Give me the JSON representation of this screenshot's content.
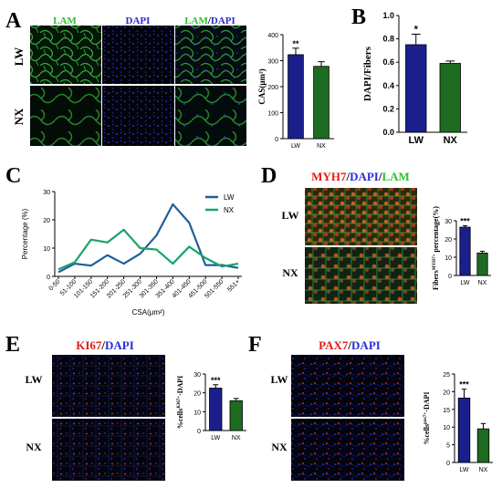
{
  "colors": {
    "lw": "#1a1f8c",
    "nx": "#1e6b22",
    "lw_line": "#1d5f9a",
    "nx_line": "#1aa36a",
    "lam_green": "#2cc02c",
    "dapi_blue": "#2b2bd6",
    "red_label": "#e01b1b",
    "micro_bg": "#05070c"
  },
  "panels": {
    "A": {
      "letter": "A",
      "col_labels": [
        {
          "parts": [
            {
              "text": "LAM",
              "color": "green"
            }
          ]
        },
        {
          "parts": [
            {
              "text": "DAPI",
              "color": "blue"
            }
          ]
        },
        {
          "parts": [
            {
              "text": "LAM",
              "color": "green"
            },
            {
              "text": "/",
              "color": "black"
            },
            {
              "text": "DAPI",
              "color": "blue"
            }
          ]
        }
      ],
      "row_labels": [
        "LW",
        "NX"
      ],
      "chart": {
        "type": "bar",
        "categories": [
          "LW",
          "NX"
        ],
        "values": [
          323,
          278
        ],
        "errors": [
          25,
          18
        ],
        "ylim": [
          0,
          400
        ],
        "yticks": [
          0,
          100,
          200,
          300,
          400
        ],
        "ylabel": "CAS(μm²)",
        "significance": [
          "**",
          ""
        ]
      }
    },
    "B": {
      "letter": "B",
      "chart": {
        "type": "bar",
        "categories": [
          "LW",
          "NX"
        ],
        "values": [
          0.75,
          0.59
        ],
        "errors": [
          0.09,
          0.02
        ],
        "ylim": [
          0,
          1.0
        ],
        "yticks": [
          "0.0",
          "0.2",
          "0.4",
          "0.6",
          "0.8",
          "1.0"
        ],
        "ylabel": "DAPI/Fibers",
        "significance": [
          "*",
          ""
        ]
      }
    },
    "C": {
      "letter": "C",
      "chart": {
        "type": "line",
        "categories": [
          "0-50",
          "51-100",
          "101-150",
          "151-200",
          "201-250",
          "251-300",
          "301-350",
          "351-400",
          "401-450",
          "451-500",
          "501-550",
          "551+"
        ],
        "series": [
          {
            "name": "LW",
            "values": [
              1.5,
              4.5,
              3.8,
              7.5,
              4.5,
              8.0,
              14.5,
              25.5,
              19.0,
              4.0,
              4.0,
              3.0
            ]
          },
          {
            "name": "NX",
            "values": [
              2.5,
              5.0,
              13.0,
              12.0,
              16.5,
              10.0,
              9.5,
              4.5,
              10.5,
              6.5,
              3.5,
              4.5
            ]
          }
        ],
        "ylim": [
          0,
          30
        ],
        "yticks": [
          0,
          10,
          20,
          30
        ],
        "ylabel": "Percentage (%)",
        "xlabel": "CSA(μm²)",
        "legend_placement": "top-right"
      }
    },
    "D": {
      "letter": "D",
      "title_parts": [
        {
          "text": "MYH7",
          "color": "red"
        },
        {
          "text": "/",
          "color": "black"
        },
        {
          "text": "DAPI",
          "color": "blue"
        },
        {
          "text": "/",
          "color": "black"
        },
        {
          "text": "LAM",
          "color": "green"
        }
      ],
      "row_labels": [
        "LW",
        "NX"
      ],
      "chart": {
        "type": "bar",
        "categories": [
          "LW",
          "NX"
        ],
        "values": [
          26.5,
          12.3
        ],
        "errors": [
          0.8,
          1.0
        ],
        "ylim": [
          0,
          30
        ],
        "yticks": [
          0,
          10,
          20,
          30
        ],
        "ylabel_main": "Fibers",
        "ylabel_sup": "MYH7+",
        "ylabel_tail": " percentage(%)",
        "significance": [
          "***",
          ""
        ]
      }
    },
    "E": {
      "letter": "E",
      "title_parts": [
        {
          "text": "KI67",
          "color": "red"
        },
        {
          "text": "/",
          "color": "black"
        },
        {
          "text": "DAPI",
          "color": "blue"
        }
      ],
      "row_labels": [
        "LW",
        "NX"
      ],
      "chart": {
        "type": "bar",
        "categories": [
          "LW",
          "NX"
        ],
        "values": [
          22.5,
          15.8
        ],
        "errors": [
          1.8,
          1.2
        ],
        "ylim": [
          0,
          30
        ],
        "yticks": [
          0,
          10,
          20,
          30
        ],
        "ylabel_main": "%cells",
        "ylabel_sup": "KI67+",
        "ylabel_tail": "·DAPI",
        "significance": [
          "***",
          ""
        ]
      }
    },
    "F": {
      "letter": "F",
      "title_parts": [
        {
          "text": "PAX7",
          "color": "red"
        },
        {
          "text": "/",
          "color": "black"
        },
        {
          "text": "DAPI",
          "color": "blue"
        }
      ],
      "row_labels": [
        "LW",
        "NX"
      ],
      "chart": {
        "type": "bar",
        "categories": [
          "LW",
          "NX"
        ],
        "values": [
          18.2,
          9.5
        ],
        "errors": [
          2.5,
          1.5
        ],
        "ylim": [
          0,
          25
        ],
        "yticks": [
          0,
          5,
          10,
          15,
          20,
          25
        ],
        "ylabel_main": "%cells",
        "ylabel_sup": "pax7+",
        "ylabel_tail": "·DAPI",
        "significance": [
          "***",
          ""
        ]
      }
    }
  }
}
